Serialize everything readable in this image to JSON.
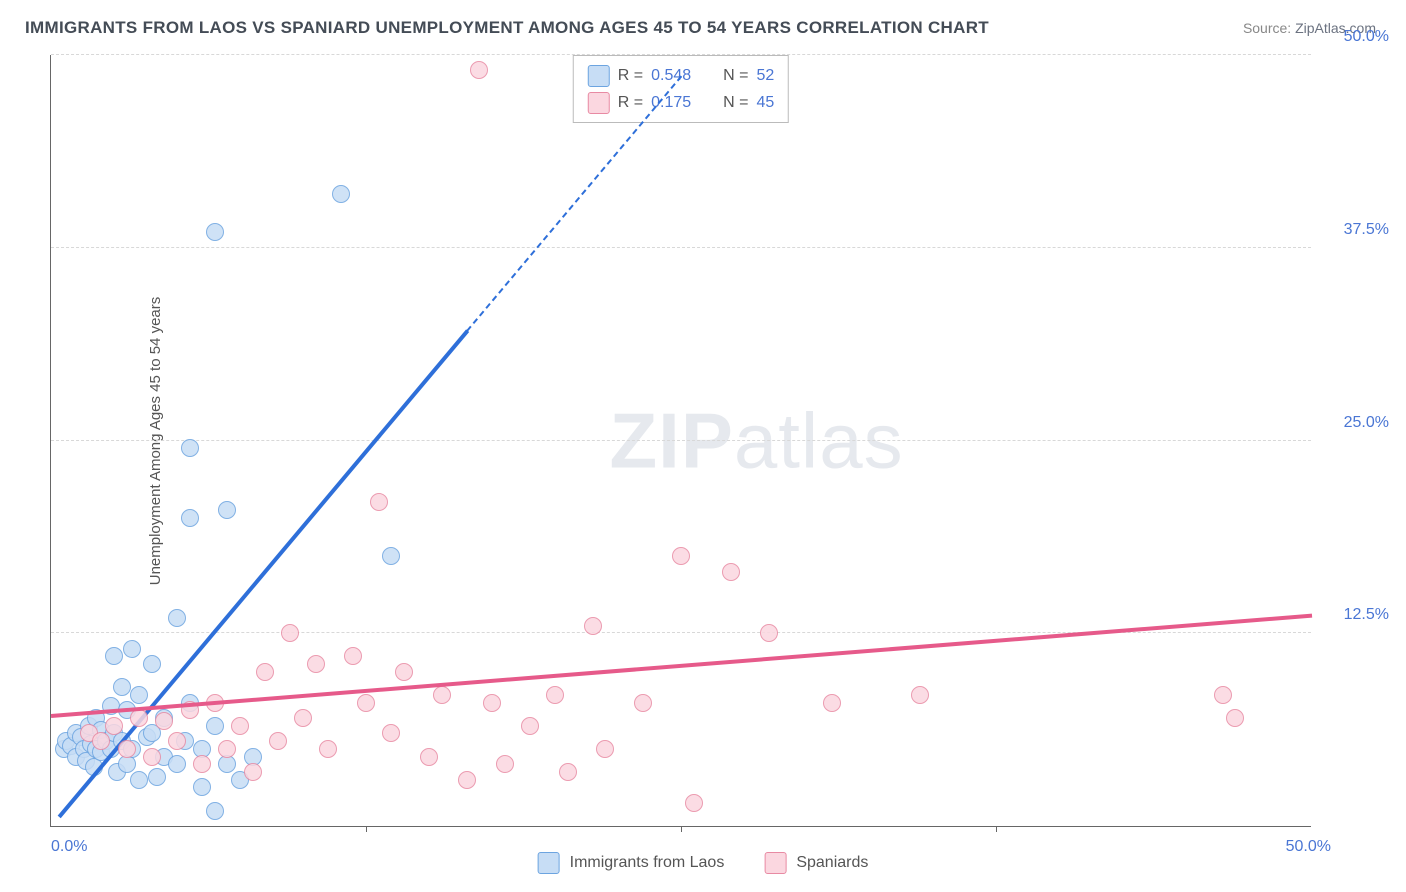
{
  "title": "IMMIGRANTS FROM LAOS VS SPANIARD UNEMPLOYMENT AMONG AGES 45 TO 54 YEARS CORRELATION CHART",
  "source_label": "Source:",
  "source_value": "ZipAtlas.com",
  "y_axis_label": "Unemployment Among Ages 45 to 54 years",
  "watermark_a": "ZIP",
  "watermark_b": "atlas",
  "chart": {
    "type": "scatter",
    "xlim": [
      0,
      50
    ],
    "ylim": [
      0,
      50
    ],
    "x_ticks_labeled": [
      0,
      50
    ],
    "x_ticks_minor": [
      12.5,
      25,
      37.5
    ],
    "y_ticks": [
      12.5,
      25.0,
      37.5,
      50.0
    ],
    "x_tick_labels": [
      "0.0%",
      "50.0%"
    ],
    "y_tick_labels": [
      "12.5%",
      "25.0%",
      "37.5%",
      "50.0%"
    ],
    "background_color": "#ffffff",
    "grid_color": "#d8d8d8",
    "axis_color": "#666666",
    "label_color": "#4a76d4",
    "axis_title_color": "#555555",
    "marker_radius": 9,
    "marker_stroke_width": 1.5,
    "series": [
      {
        "name": "Immigrants from Laos",
        "fill": "#c7ddf5",
        "stroke": "#6ca4e0",
        "line_color": "#2e6fd9",
        "R": "0.548",
        "N": "52",
        "trend": {
          "x1": 0.3,
          "y1": 0.5,
          "x2": 16.5,
          "y2": 32.0
        },
        "trend_dash": {
          "x1": 16.5,
          "y1": 32.0,
          "x2": 25.0,
          "y2": 48.5
        },
        "points": [
          [
            0.5,
            5.0
          ],
          [
            0.6,
            5.5
          ],
          [
            0.8,
            5.2
          ],
          [
            1.0,
            6.0
          ],
          [
            1.0,
            4.5
          ],
          [
            1.2,
            5.8
          ],
          [
            1.3,
            5.0
          ],
          [
            1.4,
            4.2
          ],
          [
            1.5,
            6.5
          ],
          [
            1.6,
            5.3
          ],
          [
            1.7,
            3.8
          ],
          [
            1.8,
            7.0
          ],
          [
            1.8,
            5.0
          ],
          [
            2.0,
            6.2
          ],
          [
            2.0,
            4.8
          ],
          [
            2.2,
            5.5
          ],
          [
            2.4,
            7.8
          ],
          [
            2.4,
            5.0
          ],
          [
            2.5,
            6.0
          ],
          [
            2.6,
            3.5
          ],
          [
            2.8,
            9.0
          ],
          [
            2.8,
            5.5
          ],
          [
            3.0,
            7.5
          ],
          [
            3.0,
            4.0
          ],
          [
            3.2,
            11.5
          ],
          [
            3.2,
            5.0
          ],
          [
            3.5,
            8.5
          ],
          [
            3.5,
            3.0
          ],
          [
            3.8,
            5.8
          ],
          [
            4.0,
            10.5
          ],
          [
            4.0,
            6.0
          ],
          [
            4.2,
            3.2
          ],
          [
            4.5,
            7.0
          ],
          [
            4.5,
            4.5
          ],
          [
            5.0,
            13.5
          ],
          [
            5.0,
            4.0
          ],
          [
            5.3,
            5.5
          ],
          [
            5.5,
            8.0
          ],
          [
            6.0,
            2.5
          ],
          [
            6.0,
            5.0
          ],
          [
            6.5,
            6.5
          ],
          [
            6.5,
            1.0
          ],
          [
            7.0,
            4.0
          ],
          [
            7.5,
            3.0
          ],
          [
            5.5,
            20.0
          ],
          [
            5.5,
            24.5
          ],
          [
            2.5,
            11.0
          ],
          [
            7.0,
            20.5
          ],
          [
            6.5,
            38.5
          ],
          [
            11.5,
            41.0
          ],
          [
            13.5,
            17.5
          ],
          [
            8.0,
            4.5
          ]
        ]
      },
      {
        "name": "Spaniards",
        "fill": "#fbd7e0",
        "stroke": "#e88aa3",
        "line_color": "#e65a8a",
        "R": "0.175",
        "N": "45",
        "trend": {
          "x1": 0,
          "y1": 7.0,
          "x2": 50,
          "y2": 13.5
        },
        "points": [
          [
            1.5,
            6.0
          ],
          [
            2.0,
            5.5
          ],
          [
            2.5,
            6.5
          ],
          [
            3.0,
            5.0
          ],
          [
            3.5,
            7.0
          ],
          [
            4.0,
            4.5
          ],
          [
            4.5,
            6.8
          ],
          [
            5.0,
            5.5
          ],
          [
            5.5,
            7.5
          ],
          [
            6.0,
            4.0
          ],
          [
            6.5,
            8.0
          ],
          [
            7.0,
            5.0
          ],
          [
            7.5,
            6.5
          ],
          [
            8.0,
            3.5
          ],
          [
            8.5,
            10.0
          ],
          [
            9.0,
            5.5
          ],
          [
            9.5,
            12.5
          ],
          [
            10.0,
            7.0
          ],
          [
            10.5,
            10.5
          ],
          [
            11.0,
            5.0
          ],
          [
            12.0,
            11.0
          ],
          [
            13.0,
            21.0
          ],
          [
            13.5,
            6.0
          ],
          [
            14.0,
            10.0
          ],
          [
            15.0,
            4.5
          ],
          [
            15.5,
            8.5
          ],
          [
            16.5,
            3.0
          ],
          [
            17.0,
            49.0
          ],
          [
            17.5,
            8.0
          ],
          [
            18.0,
            4.0
          ],
          [
            20.0,
            8.5
          ],
          [
            20.5,
            3.5
          ],
          [
            21.5,
            13.0
          ],
          [
            22.0,
            5.0
          ],
          [
            23.5,
            8.0
          ],
          [
            25.0,
            17.5
          ],
          [
            25.5,
            1.5
          ],
          [
            27.0,
            16.5
          ],
          [
            28.5,
            12.5
          ],
          [
            31.0,
            8.0
          ],
          [
            34.5,
            8.5
          ],
          [
            46.5,
            8.5
          ],
          [
            47.0,
            7.0
          ],
          [
            19.0,
            6.5
          ],
          [
            12.5,
            8.0
          ]
        ]
      }
    ]
  },
  "bottom_legend": [
    {
      "label": "Immigrants from Laos",
      "fill": "#c7ddf5",
      "stroke": "#6ca4e0"
    },
    {
      "label": "Spaniards",
      "fill": "#fbd7e0",
      "stroke": "#e88aa3"
    }
  ]
}
